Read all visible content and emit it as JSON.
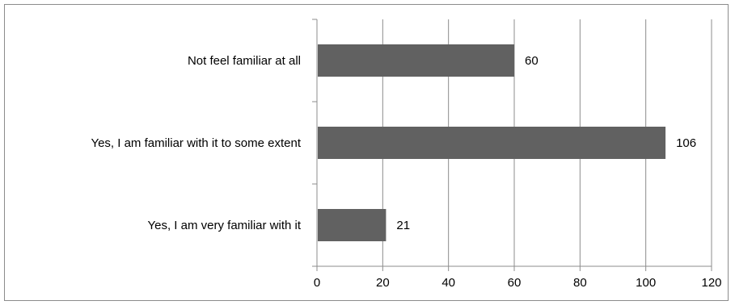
{
  "chart_data": {
    "type": "bar",
    "orientation": "horizontal",
    "categories": [
      "Not feel familiar at all",
      "Yes, I am familiar with it to some extent",
      "Yes, I am very familiar with it"
    ],
    "values": [
      60,
      106,
      21
    ],
    "xlim": [
      0,
      120
    ],
    "xticks": [
      0,
      20,
      40,
      60,
      80,
      100,
      120
    ],
    "grid": "vertical",
    "legend": "none",
    "bar_color": "#616161",
    "data_labels": true
  }
}
